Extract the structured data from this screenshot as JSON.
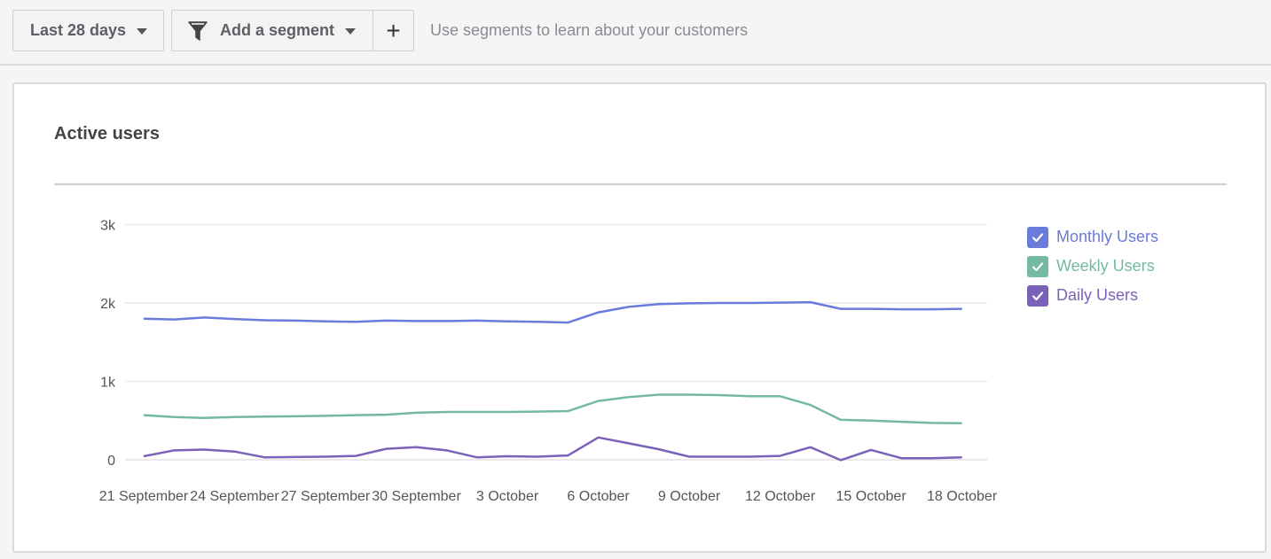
{
  "toolbar": {
    "date_range_label": "Last 28 days",
    "segment_label": "Add a segment",
    "add_label": "+",
    "hint": "Use segments to learn about your customers"
  },
  "card": {
    "title": "Active users"
  },
  "legend": [
    {
      "label": "Monthly Users",
      "color": "#6a7bdb",
      "checked": true
    },
    {
      "label": "Weekly Users",
      "color": "#74b9a0",
      "checked": true
    },
    {
      "label": "Daily Users",
      "color": "#7a62b8",
      "checked": true
    }
  ],
  "chart_data": {
    "type": "line",
    "x": [
      "21 September",
      "22 September",
      "23 September",
      "24 September",
      "25 September",
      "26 September",
      "27 September",
      "28 September",
      "29 September",
      "30 September",
      "1 October",
      "2 October",
      "3 October",
      "4 October",
      "5 October",
      "6 October",
      "7 October",
      "8 October",
      "9 October",
      "10 October",
      "11 October",
      "12 October",
      "13 October",
      "14 October",
      "15 October",
      "16 October",
      "17 October",
      "18 October"
    ],
    "xticks": [
      "21 September",
      "24 September",
      "27 September",
      "30 September",
      "3 October",
      "6 October",
      "9 October",
      "12 October",
      "15 October",
      "18 October"
    ],
    "yticks": [
      "0",
      "1k",
      "2k",
      "3k"
    ],
    "ylim": [
      0,
      3000
    ],
    "grid": true,
    "legend_position": "right",
    "series": [
      {
        "name": "Monthly Users",
        "color": "#6a7bdb",
        "values": [
          1800,
          1790,
          1815,
          1795,
          1780,
          1775,
          1765,
          1760,
          1775,
          1770,
          1770,
          1775,
          1765,
          1760,
          1750,
          1880,
          1950,
          1985,
          1995,
          2000,
          2000,
          2005,
          2010,
          1925,
          1925,
          1920,
          1920,
          1925
        ]
      },
      {
        "name": "Weekly Users",
        "color": "#74b9a0",
        "values": [
          570,
          545,
          535,
          545,
          550,
          555,
          560,
          570,
          575,
          600,
          610,
          610,
          610,
          615,
          620,
          750,
          800,
          830,
          830,
          825,
          810,
          810,
          700,
          510,
          500,
          485,
          470,
          465
        ]
      },
      {
        "name": "Daily Users",
        "color": "#7a62b8",
        "values": [
          45,
          120,
          130,
          105,
          30,
          35,
          40,
          50,
          140,
          160,
          120,
          30,
          45,
          40,
          55,
          285,
          210,
          135,
          40,
          40,
          40,
          50,
          160,
          -5,
          125,
          20,
          20,
          30
        ]
      }
    ]
  }
}
